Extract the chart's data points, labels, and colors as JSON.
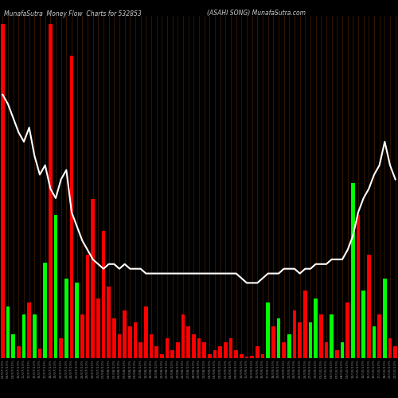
{
  "title_left": "MunafaSutra  Money Flow  Charts for 532853",
  "title_right": "(ASAHI SONG) MunafaSutra.com",
  "bg_color": "#000000",
  "bar_color_pos": "#00ff00",
  "bar_color_neg": "#ff0000",
  "line_color": "#ffffff",
  "grid_color": "#3a1800",
  "bar_heights": [
    420,
    65,
    30,
    15,
    55,
    70,
    55,
    12,
    120,
    420,
    180,
    25,
    100,
    380,
    95,
    55,
    130,
    200,
    75,
    160,
    90,
    50,
    30,
    60,
    40,
    45,
    20,
    65,
    30,
    15,
    5,
    25,
    10,
    20,
    55,
    40,
    30,
    25,
    20,
    5,
    10,
    15,
    20,
    25,
    10,
    5,
    2,
    3,
    15,
    5,
    70,
    40,
    50,
    20,
    30,
    60,
    45,
    85,
    45,
    75,
    55,
    20,
    55,
    10,
    20,
    70,
    220,
    180,
    85,
    130,
    40,
    55,
    100,
    25,
    15
  ],
  "bar_is_green": [
    false,
    true,
    true,
    false,
    true,
    false,
    true,
    false,
    true,
    false,
    true,
    false,
    true,
    false,
    true,
    false,
    false,
    false,
    false,
    false,
    false,
    false,
    false,
    false,
    false,
    false,
    false,
    false,
    false,
    false,
    false,
    false,
    false,
    false,
    false,
    false,
    false,
    false,
    false,
    false,
    false,
    false,
    false,
    false,
    false,
    false,
    false,
    false,
    false,
    false,
    true,
    false,
    true,
    false,
    true,
    false,
    false,
    false,
    true,
    true,
    false,
    false,
    true,
    false,
    true,
    false,
    true,
    false,
    true,
    false,
    true,
    false,
    true,
    false,
    false
  ],
  "line_values": [
    85,
    83,
    80,
    77,
    75,
    78,
    72,
    68,
    70,
    65,
    63,
    67,
    69,
    60,
    57,
    54,
    52,
    50,
    49,
    48,
    49,
    49,
    48,
    49,
    48,
    48,
    48,
    47,
    47,
    47,
    47,
    47,
    47,
    47,
    47,
    47,
    47,
    47,
    47,
    47,
    47,
    47,
    47,
    47,
    47,
    46,
    45,
    45,
    45,
    46,
    47,
    47,
    47,
    48,
    48,
    48,
    47,
    48,
    48,
    49,
    49,
    49,
    50,
    50,
    50,
    52,
    55,
    60,
    63,
    65,
    68,
    70,
    75,
    70,
    67
  ],
  "dates": [
    "02/07/13%",
    "06/07/13%",
    "09/07/13%",
    "10/07/13%",
    "11/07/13%",
    "12/07/13%",
    "15/07/13%",
    "16/07/13%",
    "17/07/13%",
    "18/07/13%",
    "19/07/13%",
    "22/07/13%",
    "23/07/13%",
    "24/07/13%",
    "25/07/13%",
    "26/07/13%",
    "29/07/13%",
    "30/07/13%",
    "31/07/13%",
    "01/08/13%",
    "02/08/13%",
    "05/08/13%",
    "06/08/13%",
    "07/08/13%",
    "08/08/13%",
    "09/08/13%",
    "13/08/13%",
    "14/08/13%",
    "16/08/13%",
    "19/08/13%",
    "20/08/13%",
    "21/08/13%",
    "22/08/13%",
    "23/08/13%",
    "26/08/13%",
    "27/08/13%",
    "28/08/13%",
    "29/08/13%",
    "30/08/13%",
    "02/09/13%",
    "03/09/13%",
    "04/09/13%",
    "05/09/13%",
    "06/09/13%",
    "09/09/13%",
    "10/09/13%",
    "11/09/13%",
    "12/09/13%",
    "13/09/13%",
    "16/09/13%",
    "17/09/13%",
    "18/09/13%",
    "19/09/13%",
    "20/09/13%",
    "23/09/13%",
    "24/09/13%",
    "25/09/13%",
    "26/09/13%",
    "27/09/13%",
    "30/09/13%",
    "01/10/13%",
    "03/10/13%",
    "04/10/13%",
    "07/10/13%",
    "08/10/13%",
    "09/10/13%",
    "10/10/13%",
    "11/10/13%",
    "14/10/13%",
    "15/10/13%",
    "16/10/13%",
    "17/10/13%",
    "18/10/13%",
    "21/10/13%",
    "22/10/13%"
  ]
}
